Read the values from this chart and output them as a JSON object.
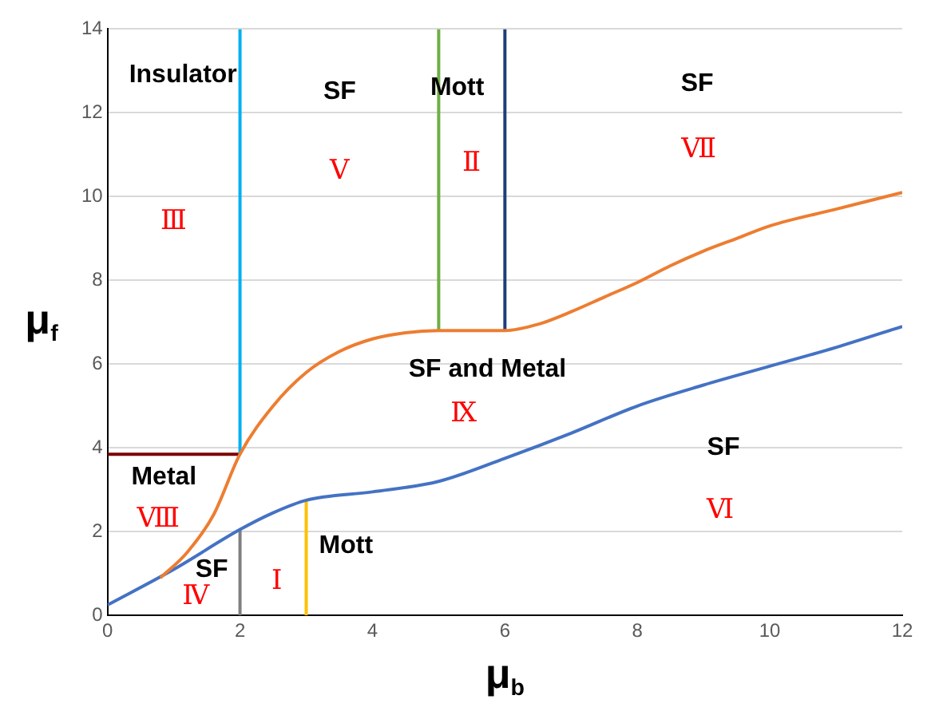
{
  "chart_data": {
    "type": "line",
    "xlabel": "μ$_{b}$",
    "ylabel": "μ$_{f}$",
    "xlim": [
      0,
      12
    ],
    "ylim": [
      0,
      14
    ],
    "xticks": [
      0,
      2,
      4,
      6,
      8,
      10,
      12
    ],
    "yticks": [
      0,
      2,
      4,
      6,
      8,
      10,
      12,
      14
    ],
    "grid": "y",
    "legend": false,
    "marker": "none",
    "line_style": "solid",
    "series": [
      {
        "type": "line",
        "color": "#ed7d31",
        "x": [
          0.8,
          1.2,
          1.6,
          2,
          2.5,
          3,
          3.5,
          4,
          4.5,
          5,
          6,
          6.5,
          7,
          7.5,
          8,
          8.5,
          9,
          9.5,
          10,
          11,
          12
        ],
        "values": [
          0.9,
          1.5,
          2.4,
          3.85,
          5.0,
          5.8,
          6.3,
          6.6,
          6.75,
          6.8,
          6.8,
          6.95,
          7.25,
          7.6,
          7.95,
          8.35,
          8.7,
          9.0,
          9.3,
          9.7,
          10.1
        ]
      },
      {
        "type": "line",
        "color": "#4472c4",
        "x": [
          0,
          1,
          2,
          2.5,
          3,
          4,
          5,
          6,
          7,
          8,
          9,
          10,
          11,
          12
        ],
        "values": [
          0.25,
          1.1,
          2.05,
          2.45,
          2.75,
          2.95,
          3.2,
          3.75,
          4.35,
          5.0,
          5.5,
          5.95,
          6.4,
          6.9
        ]
      },
      {
        "type": "line",
        "color": "#00b0f0",
        "x": [
          2,
          2
        ],
        "values": [
          3.85,
          14
        ]
      },
      {
        "type": "line",
        "color": "#70ad47",
        "x": [
          5,
          5
        ],
        "values": [
          6.8,
          14
        ]
      },
      {
        "type": "line",
        "color": "#1f3d7a",
        "x": [
          6,
          6
        ],
        "values": [
          6.8,
          14
        ]
      },
      {
        "type": "line",
        "color": "#7b0000",
        "x": [
          0,
          2
        ],
        "values": [
          3.85,
          3.85
        ]
      },
      {
        "type": "line",
        "color": "#7f7f7f",
        "x": [
          2,
          2
        ],
        "values": [
          0,
          2.05
        ]
      },
      {
        "type": "line",
        "color": "#ffc000",
        "x": [
          3,
          3
        ],
        "values": [
          0,
          2.75
        ]
      }
    ],
    "annotations": [
      "Insulator",
      "SF",
      "Mott",
      "SF",
      "Ⅴ",
      "Ⅱ",
      "Ⅶ",
      "Ⅲ",
      "SF and Metal",
      "Ⅸ",
      "SF",
      "Ⅵ",
      "Metal",
      "Ⅷ",
      "SF",
      "Mott",
      "Ⅰ",
      "Ⅳ"
    ]
  }
}
